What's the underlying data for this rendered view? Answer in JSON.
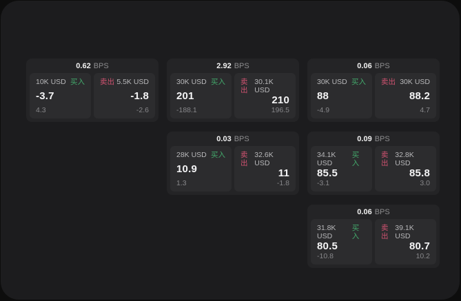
{
  "page": {
    "bps_unit": "BPS",
    "buy_label": "买入",
    "sell_label": "卖出",
    "colors": {
      "backdrop": "#0d0d0d",
      "window_bg": "#1c1c1e",
      "card_bg": "#242426",
      "panel_bg": "#2c2c2e",
      "buy_accent": "#43a86b",
      "sell_accent": "#cf5270"
    }
  },
  "cards": [
    {
      "bps": "0.62",
      "grid": {
        "row": 1,
        "col": 1
      },
      "buy": {
        "size": "10K USD",
        "value": "-3.7",
        "sub": "4.3"
      },
      "sell": {
        "size": "5.5K USD",
        "value": "-1.8",
        "sub": "-2.6"
      }
    },
    {
      "bps": "2.92",
      "grid": {
        "row": 1,
        "col": 2
      },
      "buy": {
        "size": "30K USD",
        "value": "201",
        "sub": "-188.1"
      },
      "sell": {
        "size": "30.1K USD",
        "value": "210",
        "sub": "196.5"
      }
    },
    {
      "bps": "0.06",
      "grid": {
        "row": 1,
        "col": 3
      },
      "buy": {
        "size": "30K USD",
        "value": "88",
        "sub": "-4.9"
      },
      "sell": {
        "size": "30K USD",
        "value": "88.2",
        "sub": "4.7"
      }
    },
    {
      "bps": "0.03",
      "grid": {
        "row": 2,
        "col": 2
      },
      "buy": {
        "size": "28K USD",
        "value": "10.9",
        "sub": "1.3"
      },
      "sell": {
        "size": "32.6K USD",
        "value": "11",
        "sub": "-1.8"
      }
    },
    {
      "bps": "0.09",
      "grid": {
        "row": 2,
        "col": 3
      },
      "buy": {
        "size": "34.1K USD",
        "value": "85.5",
        "sub": "-3.1"
      },
      "sell": {
        "size": "32.8K USD",
        "value": "85.8",
        "sub": "3.0"
      }
    },
    {
      "bps": "0.06",
      "grid": {
        "row": 3,
        "col": 3
      },
      "buy": {
        "size": "31.8K USD",
        "value": "80.5",
        "sub": "-10.8"
      },
      "sell": {
        "size": "39.1K USD",
        "value": "80.7",
        "sub": "10.2"
      }
    }
  ]
}
